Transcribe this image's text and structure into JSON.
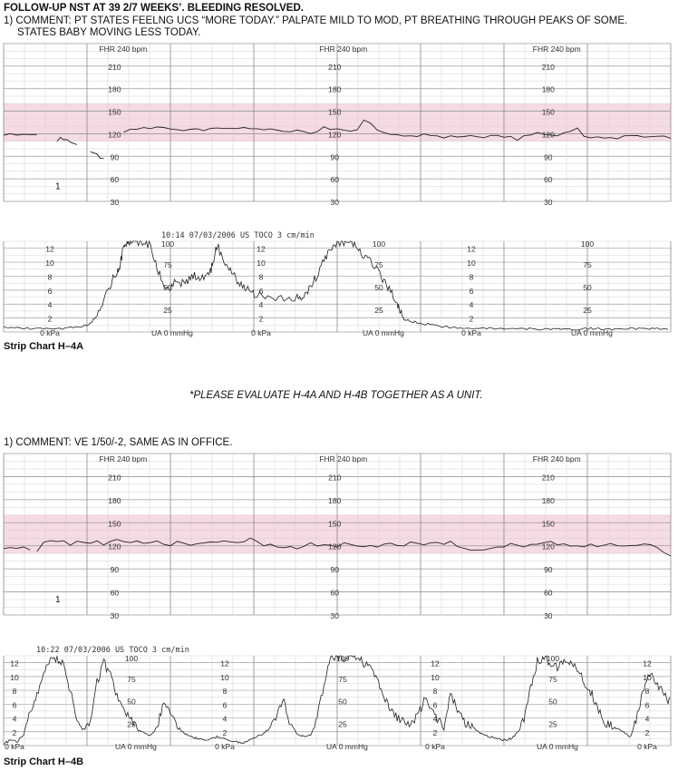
{
  "header_a": {
    "title": "FOLLOW-UP NST AT 39 2/7 WEEKS’. BLEEDING RESOLVED.",
    "comment_line1": "1) COMMENT: PT STATES FEELNG UCS “MORE TODAY.” PALPATE MILD TO MOD, PT BREATHING THROUGH PEAKS OF SOME.",
    "comment_line2": "STATES BABY MOVING LESS TODAY."
  },
  "strip_a_label": "Strip Chart H–4A",
  "note": "*PLEASE EVALUATE H-4A AND H-4B TOGETHER AS A UNIT.",
  "header_b": {
    "comment": "1) COMMENT: VE 1/50/-2, SAME AS IN OFFICE."
  },
  "strip_b_label": "Strip Chart H–4B",
  "chart_data": [
    {
      "type": "line",
      "name": "H-4A FHR",
      "scale_label": "FHR 240 bpm",
      "y_ticks": [
        210,
        180,
        150,
        120,
        90,
        60,
        30
      ],
      "ylim": [
        30,
        240
      ],
      "normal_band": [
        110,
        160
      ],
      "page_marker": "1",
      "segments": [
        {
          "x": [
            0,
            1,
            2,
            3,
            4,
            5
          ],
          "y": [
            118,
            118,
            118,
            118,
            118,
            118
          ]
        },
        {
          "x": [
            8,
            8.5,
            9,
            9.5,
            10,
            10.5,
            11
          ],
          "y": [
            110,
            113,
            112,
            111,
            108,
            106,
            104
          ]
        },
        {
          "x": [
            13,
            14,
            14.5,
            15
          ],
          "y": [
            96,
            91,
            87,
            86
          ]
        },
        {
          "x": [
            18,
            19,
            20,
            21,
            22,
            23,
            24,
            25,
            26,
            27,
            28,
            29,
            30,
            31,
            32,
            33,
            34,
            35,
            36,
            37,
            38,
            39,
            40,
            41,
            42,
            43,
            44,
            45,
            46,
            47,
            48,
            49,
            50,
            51,
            52,
            53,
            54,
            55,
            56,
            57,
            58,
            59,
            60,
            61,
            62,
            63,
            64,
            65,
            66,
            67,
            68,
            69,
            70,
            71,
            72,
            73,
            74,
            75,
            76,
            77,
            78,
            79,
            80,
            81,
            82,
            83,
            84,
            85,
            86,
            87,
            88,
            89,
            90,
            91,
            92,
            93,
            94,
            95,
            96,
            97,
            98,
            99,
            100
          ],
          "y": [
            122,
            124,
            126,
            127,
            126,
            128,
            127,
            126,
            127,
            125,
            126,
            127,
            126,
            127,
            128,
            126,
            125,
            126,
            127,
            126,
            125,
            124,
            125,
            126,
            125,
            124,
            126,
            125,
            122,
            124,
            127,
            124,
            126,
            124,
            123,
            124,
            136,
            132,
            126,
            122,
            120,
            119,
            118,
            119,
            117,
            118,
            117,
            116,
            114,
            117,
            115,
            116,
            118,
            117,
            116,
            118,
            119,
            117,
            118,
            113,
            117,
            118,
            120,
            119,
            118,
            117,
            120,
            125,
            129,
            118,
            116,
            117,
            116,
            117,
            115,
            116,
            117,
            116,
            115,
            116,
            115,
            116,
            116
          ]
        }
      ]
    },
    {
      "type": "line",
      "name": "H-4A UA",
      "timestamp": "10:14  07/03/2006  US  TOCO  3 cm/min",
      "left_ticks": [
        "12",
        "10",
        "8",
        "6",
        "4",
        "2",
        "0 kPa"
      ],
      "right_ticks": [
        "100",
        "75",
        "50",
        "25",
        "UA  0  mmHg"
      ],
      "ylim": [
        0,
        100
      ],
      "x": [
        0,
        2,
        4,
        6,
        8,
        10,
        12,
        13,
        14,
        15,
        16,
        17,
        17.5,
        18,
        18.5,
        19,
        20,
        21,
        22,
        23,
        24,
        25,
        26,
        27,
        28,
        29,
        30,
        31,
        31.5,
        32,
        33,
        34,
        35,
        36,
        37,
        38,
        40,
        42,
        44,
        45,
        46,
        47,
        48,
        49,
        50,
        51,
        52,
        53,
        54,
        55,
        56,
        57,
        58,
        59,
        59.5,
        60,
        61,
        62,
        64,
        66,
        68,
        70,
        72,
        74,
        76,
        78,
        80,
        82,
        84,
        86,
        88,
        90,
        92,
        94,
        96,
        98,
        100
      ],
      "y": [
        5,
        5,
        4,
        4,
        3,
        5,
        6,
        10,
        18,
        34,
        52,
        68,
        75,
        94,
        100,
        100,
        100,
        100,
        96,
        70,
        52,
        48,
        58,
        52,
        60,
        63,
        58,
        66,
        80,
        96,
        80,
        68,
        56,
        48,
        44,
        40,
        38,
        36,
        37,
        40,
        50,
        62,
        78,
        90,
        100,
        97,
        100,
        94,
        84,
        76,
        68,
        56,
        46,
        30,
        22,
        14,
        12,
        10,
        8,
        6,
        4,
        3,
        4,
        4,
        3,
        4,
        3,
        3,
        4,
        3,
        4,
        3,
        3,
        4,
        3,
        4,
        3
      ]
    },
    {
      "type": "line",
      "name": "H-4B FHR",
      "scale_label": "FHR 240 bpm",
      "y_ticks": [
        210,
        180,
        150,
        120,
        90,
        60,
        30
      ],
      "ylim": [
        30,
        240
      ],
      "normal_band": [
        110,
        160
      ],
      "page_marker": "1",
      "segments": [
        {
          "x": [
            0,
            1,
            2,
            3,
            4
          ],
          "y": [
            116,
            117,
            116,
            117,
            116
          ]
        },
        {
          "x": [
            5,
            6,
            7,
            8,
            9,
            10,
            11,
            12,
            13,
            14,
            15,
            16,
            17,
            18,
            19,
            20,
            21,
            22,
            23,
            24,
            25,
            26,
            27,
            28,
            29,
            30,
            31,
            32,
            33,
            34,
            35,
            36,
            37,
            38,
            39,
            40,
            41,
            42,
            43,
            44,
            45,
            46,
            47,
            48,
            49,
            50,
            51,
            52,
            53,
            54,
            55,
            56,
            57,
            58,
            59,
            60,
            61,
            62,
            63,
            64,
            65,
            66,
            67,
            68,
            69,
            70,
            71,
            72,
            73,
            74,
            75,
            76,
            77,
            78,
            79,
            80,
            81,
            82,
            83,
            84,
            85,
            86,
            87,
            88,
            89,
            90,
            91,
            92,
            93,
            94,
            95,
            96,
            97,
            98,
            99,
            100
          ],
          "y": [
            112,
            124,
            126,
            124,
            128,
            122,
            128,
            126,
            124,
            127,
            122,
            125,
            128,
            124,
            122,
            126,
            122,
            124,
            126,
            124,
            122,
            126,
            124,
            122,
            124,
            125,
            123,
            124,
            126,
            124,
            122,
            124,
            128,
            125,
            120,
            123,
            120,
            118,
            120,
            118,
            120,
            122,
            118,
            121,
            120,
            118,
            122,
            120,
            118,
            120,
            122,
            120,
            123,
            124,
            122,
            120,
            124,
            122,
            120,
            122,
            123,
            121,
            124,
            120,
            118,
            116,
            115,
            116,
            118,
            120,
            119,
            121,
            120,
            118,
            121,
            120,
            122,
            124,
            122,
            123,
            121,
            122,
            120,
            124,
            120,
            122,
            121,
            120,
            118,
            120,
            119,
            121,
            120,
            118,
            112,
            108
          ]
        }
      ]
    },
    {
      "type": "line",
      "name": "H-4B UA",
      "timestamp": "10:22  07/03/2006  US  TOCO  3 cm/min",
      "left_ticks": [
        "12",
        "10",
        "8",
        "6",
        "4",
        "2",
        "0 kPa"
      ],
      "right_ticks": [
        "100",
        "75",
        "50",
        "25",
        "UA  0  mmHg"
      ],
      "ylim": [
        0,
        100
      ],
      "x": [
        0,
        1,
        2,
        3,
        4,
        5,
        6,
        7,
        8,
        9,
        10,
        11,
        12,
        13,
        14,
        15,
        16,
        17,
        18,
        19,
        20,
        21,
        22,
        23,
        24,
        25,
        26,
        27,
        28,
        29,
        30,
        31,
        32,
        33,
        34,
        35,
        36,
        37,
        38,
        39,
        40,
        41,
        42,
        43,
        44,
        45,
        46,
        47,
        48,
        49,
        50,
        51,
        52,
        53,
        54,
        55,
        56,
        57,
        58,
        59,
        60,
        61,
        62,
        63,
        64,
        65,
        66,
        67,
        68,
        69,
        70,
        71,
        72,
        73,
        74,
        75,
        76,
        77,
        78,
        79,
        80,
        81,
        82,
        83,
        84,
        85,
        86,
        87,
        88,
        89,
        90,
        91,
        92,
        93,
        94,
        95,
        96,
        97,
        98,
        99,
        100
      ],
      "y": [
        2,
        6,
        4,
        12,
        40,
        55,
        78,
        98,
        96,
        90,
        60,
        28,
        20,
        28,
        70,
        92,
        80,
        56,
        38,
        30,
        18,
        14,
        12,
        20,
        48,
        36,
        22,
        14,
        10,
        8,
        6,
        7,
        10,
        8,
        6,
        4,
        3,
        6,
        10,
        14,
        20,
        36,
        48,
        22,
        14,
        10,
        12,
        30,
        68,
        96,
        100,
        98,
        100,
        96,
        92,
        84,
        72,
        52,
        40,
        30,
        26,
        24,
        32,
        50,
        46,
        30,
        22,
        60,
        40,
        26,
        22,
        16,
        12,
        10,
        8,
        6,
        8,
        14,
        30,
        66,
        94,
        98,
        92,
        88,
        96,
        90,
        84,
        72,
        60,
        44,
        26,
        22,
        20,
        14,
        10,
        34,
        64,
        82,
        70,
        56,
        48
      ]
    }
  ]
}
